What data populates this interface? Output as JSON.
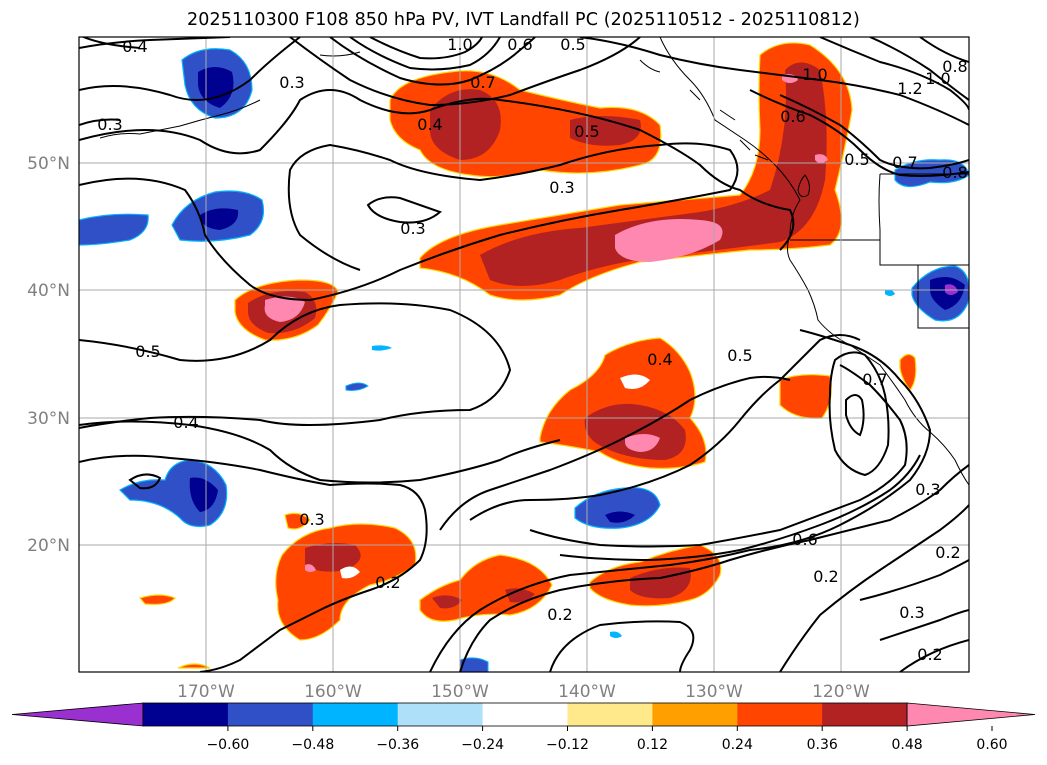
{
  "title": "2025110300 F108 850 hPa PV, IVT Landfall PC (2025110512 - 2025110812)",
  "map": {
    "longitude_labels": [
      "170°W",
      "160°W",
      "150°W",
      "140°W",
      "130°W",
      "120°W"
    ],
    "latitude_labels": [
      "50°N",
      "40°N",
      "30°N",
      "20°N"
    ],
    "contour_labels": [
      "0.4",
      "0.3",
      "0.3",
      "0.3",
      "0.5",
      "0.4",
      "0.4",
      "0.7",
      "0.5",
      "0.5",
      "0.3",
      "0.4",
      "0.5",
      "0.6",
      "1.0",
      "1.0",
      "1.2",
      "0.8",
      "0.6",
      "0.5",
      "0.7",
      "0.8",
      "0.3",
      "0.2",
      "0.6",
      "0.2",
      "0.2",
      "0.3",
      "0.2",
      "0.2",
      "0.7",
      "0.3",
      "1.0"
    ],
    "gridlines": true
  },
  "colorbar": {
    "tick_labels": [
      "−0.60",
      "−0.48",
      "−0.36",
      "−0.24",
      "−0.12",
      "0.12",
      "0.24",
      "0.36",
      "0.48",
      "0.60"
    ],
    "colors": [
      "#9b30d0",
      "#000091",
      "#3050c8",
      "#00b4ff",
      "#aee0fa",
      "#ffffff",
      "#ffe98a",
      "#ffa000",
      "#ff4500",
      "#b22222",
      "#ff88b0"
    ]
  }
}
